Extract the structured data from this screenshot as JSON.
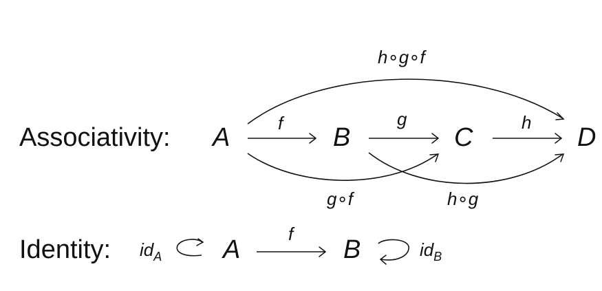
{
  "associativity": {
    "heading": "Associativity:",
    "objects": {
      "a": "A",
      "b": "B",
      "c": "C",
      "d": "D"
    },
    "morphisms": {
      "f": "f",
      "g": "g",
      "h": "h",
      "hgf": "h∘g∘f",
      "gf": "g∘f",
      "hg": "h∘g"
    }
  },
  "identity": {
    "heading": "Identity:",
    "objects": {
      "a": "A",
      "b": "B"
    },
    "morphisms": {
      "f": "f"
    },
    "id_a": {
      "base": "id",
      "sub": "A"
    },
    "id_b": {
      "base": "id",
      "sub": "B"
    }
  }
}
